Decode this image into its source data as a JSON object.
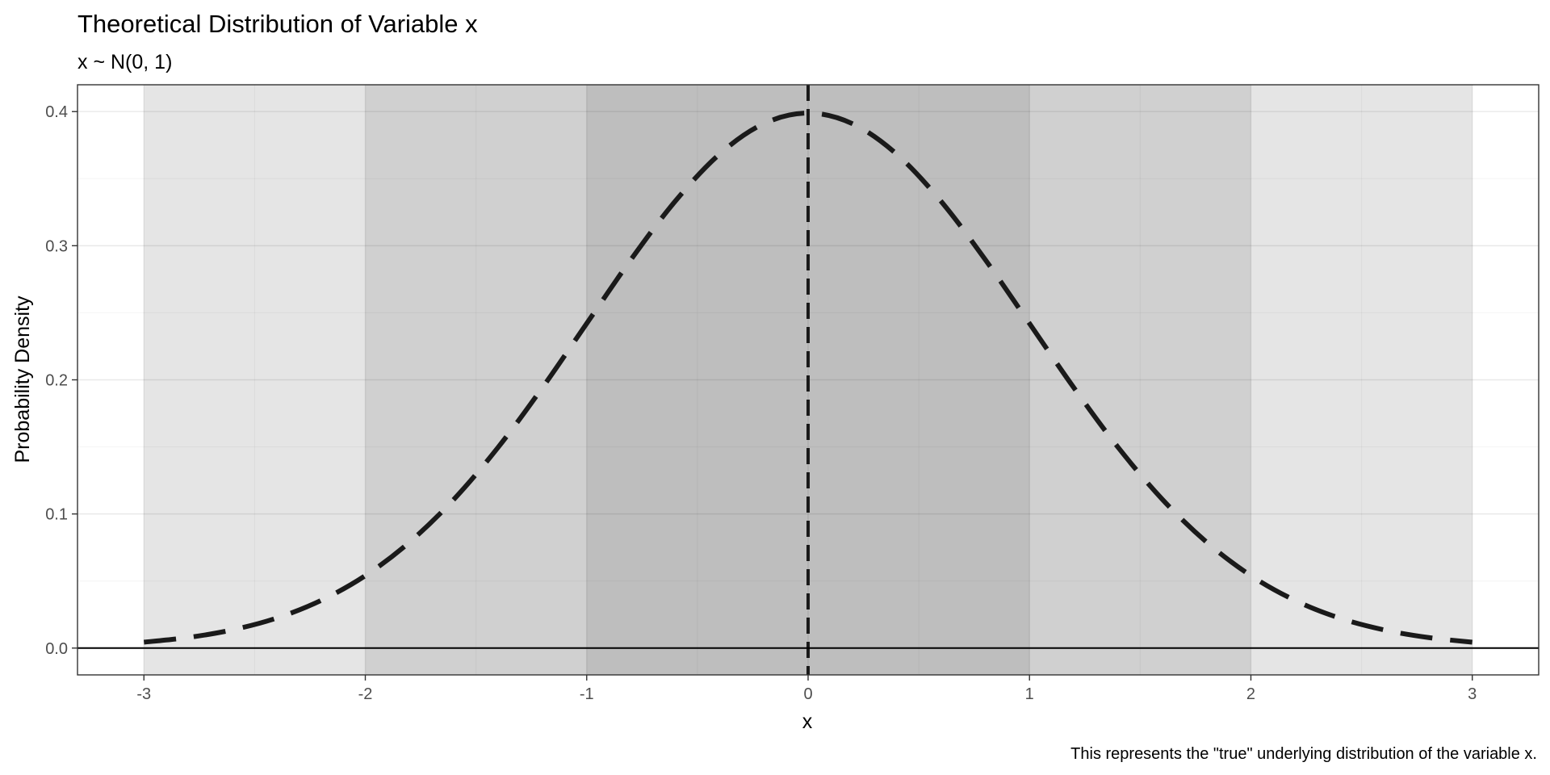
{
  "chart_data": {
    "type": "line",
    "title": "Theoretical Distribution of Variable x",
    "subtitle": "x ~ N(0, 1)",
    "xlabel": "x",
    "ylabel": "Probability Density",
    "caption": "This represents the \"true\" underlying distribution of the variable x.",
    "xlim": [
      -3.3,
      3.3
    ],
    "ylim": [
      -0.02,
      0.42
    ],
    "x_ticks": [
      -3,
      -2,
      -1,
      0,
      1,
      2,
      3
    ],
    "x_tick_labels": [
      "-3",
      "-2",
      "-1",
      "0",
      "1",
      "2",
      "3"
    ],
    "y_ticks": [
      0.0,
      0.1,
      0.2,
      0.3,
      0.4
    ],
    "y_tick_labels": [
      "0.0",
      "0.1",
      "0.2",
      "0.3",
      "0.4"
    ],
    "grid": true,
    "shaded_bands": [
      {
        "x_start": -3,
        "x_end": 3,
        "color": "#e5e5e5"
      },
      {
        "x_start": -2,
        "x_end": 2,
        "color": "#d0d0d0"
      },
      {
        "x_start": -1,
        "x_end": 1,
        "color": "#bebebe"
      }
    ],
    "series": [
      {
        "line_style": "dashed",
        "color": "#1a1a1a",
        "x": [
          -3.0,
          -2.8,
          -2.6,
          -2.4,
          -2.2,
          -2.0,
          -1.8,
          -1.6,
          -1.4,
          -1.2,
          -1.0,
          -0.8,
          -0.6,
          -0.4,
          -0.2,
          0.0,
          0.2,
          0.4,
          0.6,
          0.8,
          1.0,
          1.2,
          1.4,
          1.6,
          1.8,
          2.0,
          2.2,
          2.4,
          2.6,
          2.8,
          3.0
        ],
        "y": [
          0.0044,
          0.0079,
          0.0136,
          0.0224,
          0.0355,
          0.054,
          0.079,
          0.1109,
          0.1497,
          0.1942,
          0.242,
          0.2897,
          0.3332,
          0.3683,
          0.391,
          0.3989,
          0.391,
          0.3683,
          0.3332,
          0.2897,
          0.242,
          0.1942,
          0.1497,
          0.1109,
          0.079,
          0.054,
          0.0355,
          0.0224,
          0.0136,
          0.0079,
          0.0044
        ]
      }
    ],
    "reference_lines": [
      {
        "orientation": "vertical",
        "x": 0,
        "line_style": "dashed",
        "color": "#1a1a1a"
      },
      {
        "orientation": "horizontal",
        "y": 0,
        "line_style": "solid",
        "color": "#000000"
      }
    ]
  }
}
